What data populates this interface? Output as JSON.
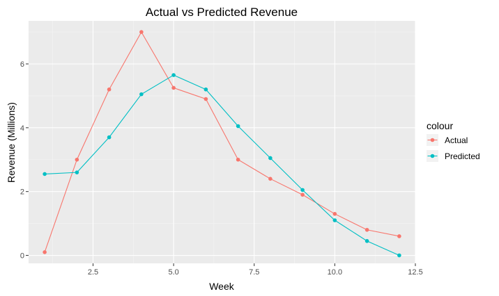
{
  "chart_data": {
    "type": "line",
    "title": "Actual vs Predicted Revenue",
    "xlabel": "Week",
    "ylabel": "Revenue (Millions)",
    "xlim": [
      0.5,
      12.5
    ],
    "ylim": [
      -0.25,
      7.35
    ],
    "x_ticks": [
      2.5,
      5.0,
      7.5,
      10.0,
      12.5
    ],
    "x_tick_labels": [
      "2.5",
      "5.0",
      "7.5",
      "10.0",
      "12.5"
    ],
    "y_ticks": [
      0,
      2,
      4,
      6
    ],
    "y_tick_labels": [
      "0",
      "2",
      "4",
      "6"
    ],
    "grid": true,
    "legend_title": "colour",
    "legend_position": "right",
    "x": [
      1,
      2,
      3,
      4,
      5,
      6,
      7,
      8,
      9,
      10,
      11,
      12
    ],
    "series": [
      {
        "name": "Actual",
        "color": "#F8766D",
        "values": [
          0.1,
          3.0,
          5.2,
          7.0,
          5.25,
          4.9,
          3.0,
          2.4,
          1.9,
          1.3,
          0.8,
          0.6
        ]
      },
      {
        "name": "Predicted",
        "color": "#00BFC4",
        "values": [
          2.55,
          2.6,
          3.7,
          5.05,
          5.65,
          5.2,
          4.05,
          3.05,
          2.05,
          1.1,
          0.45,
          0.0
        ]
      }
    ]
  }
}
